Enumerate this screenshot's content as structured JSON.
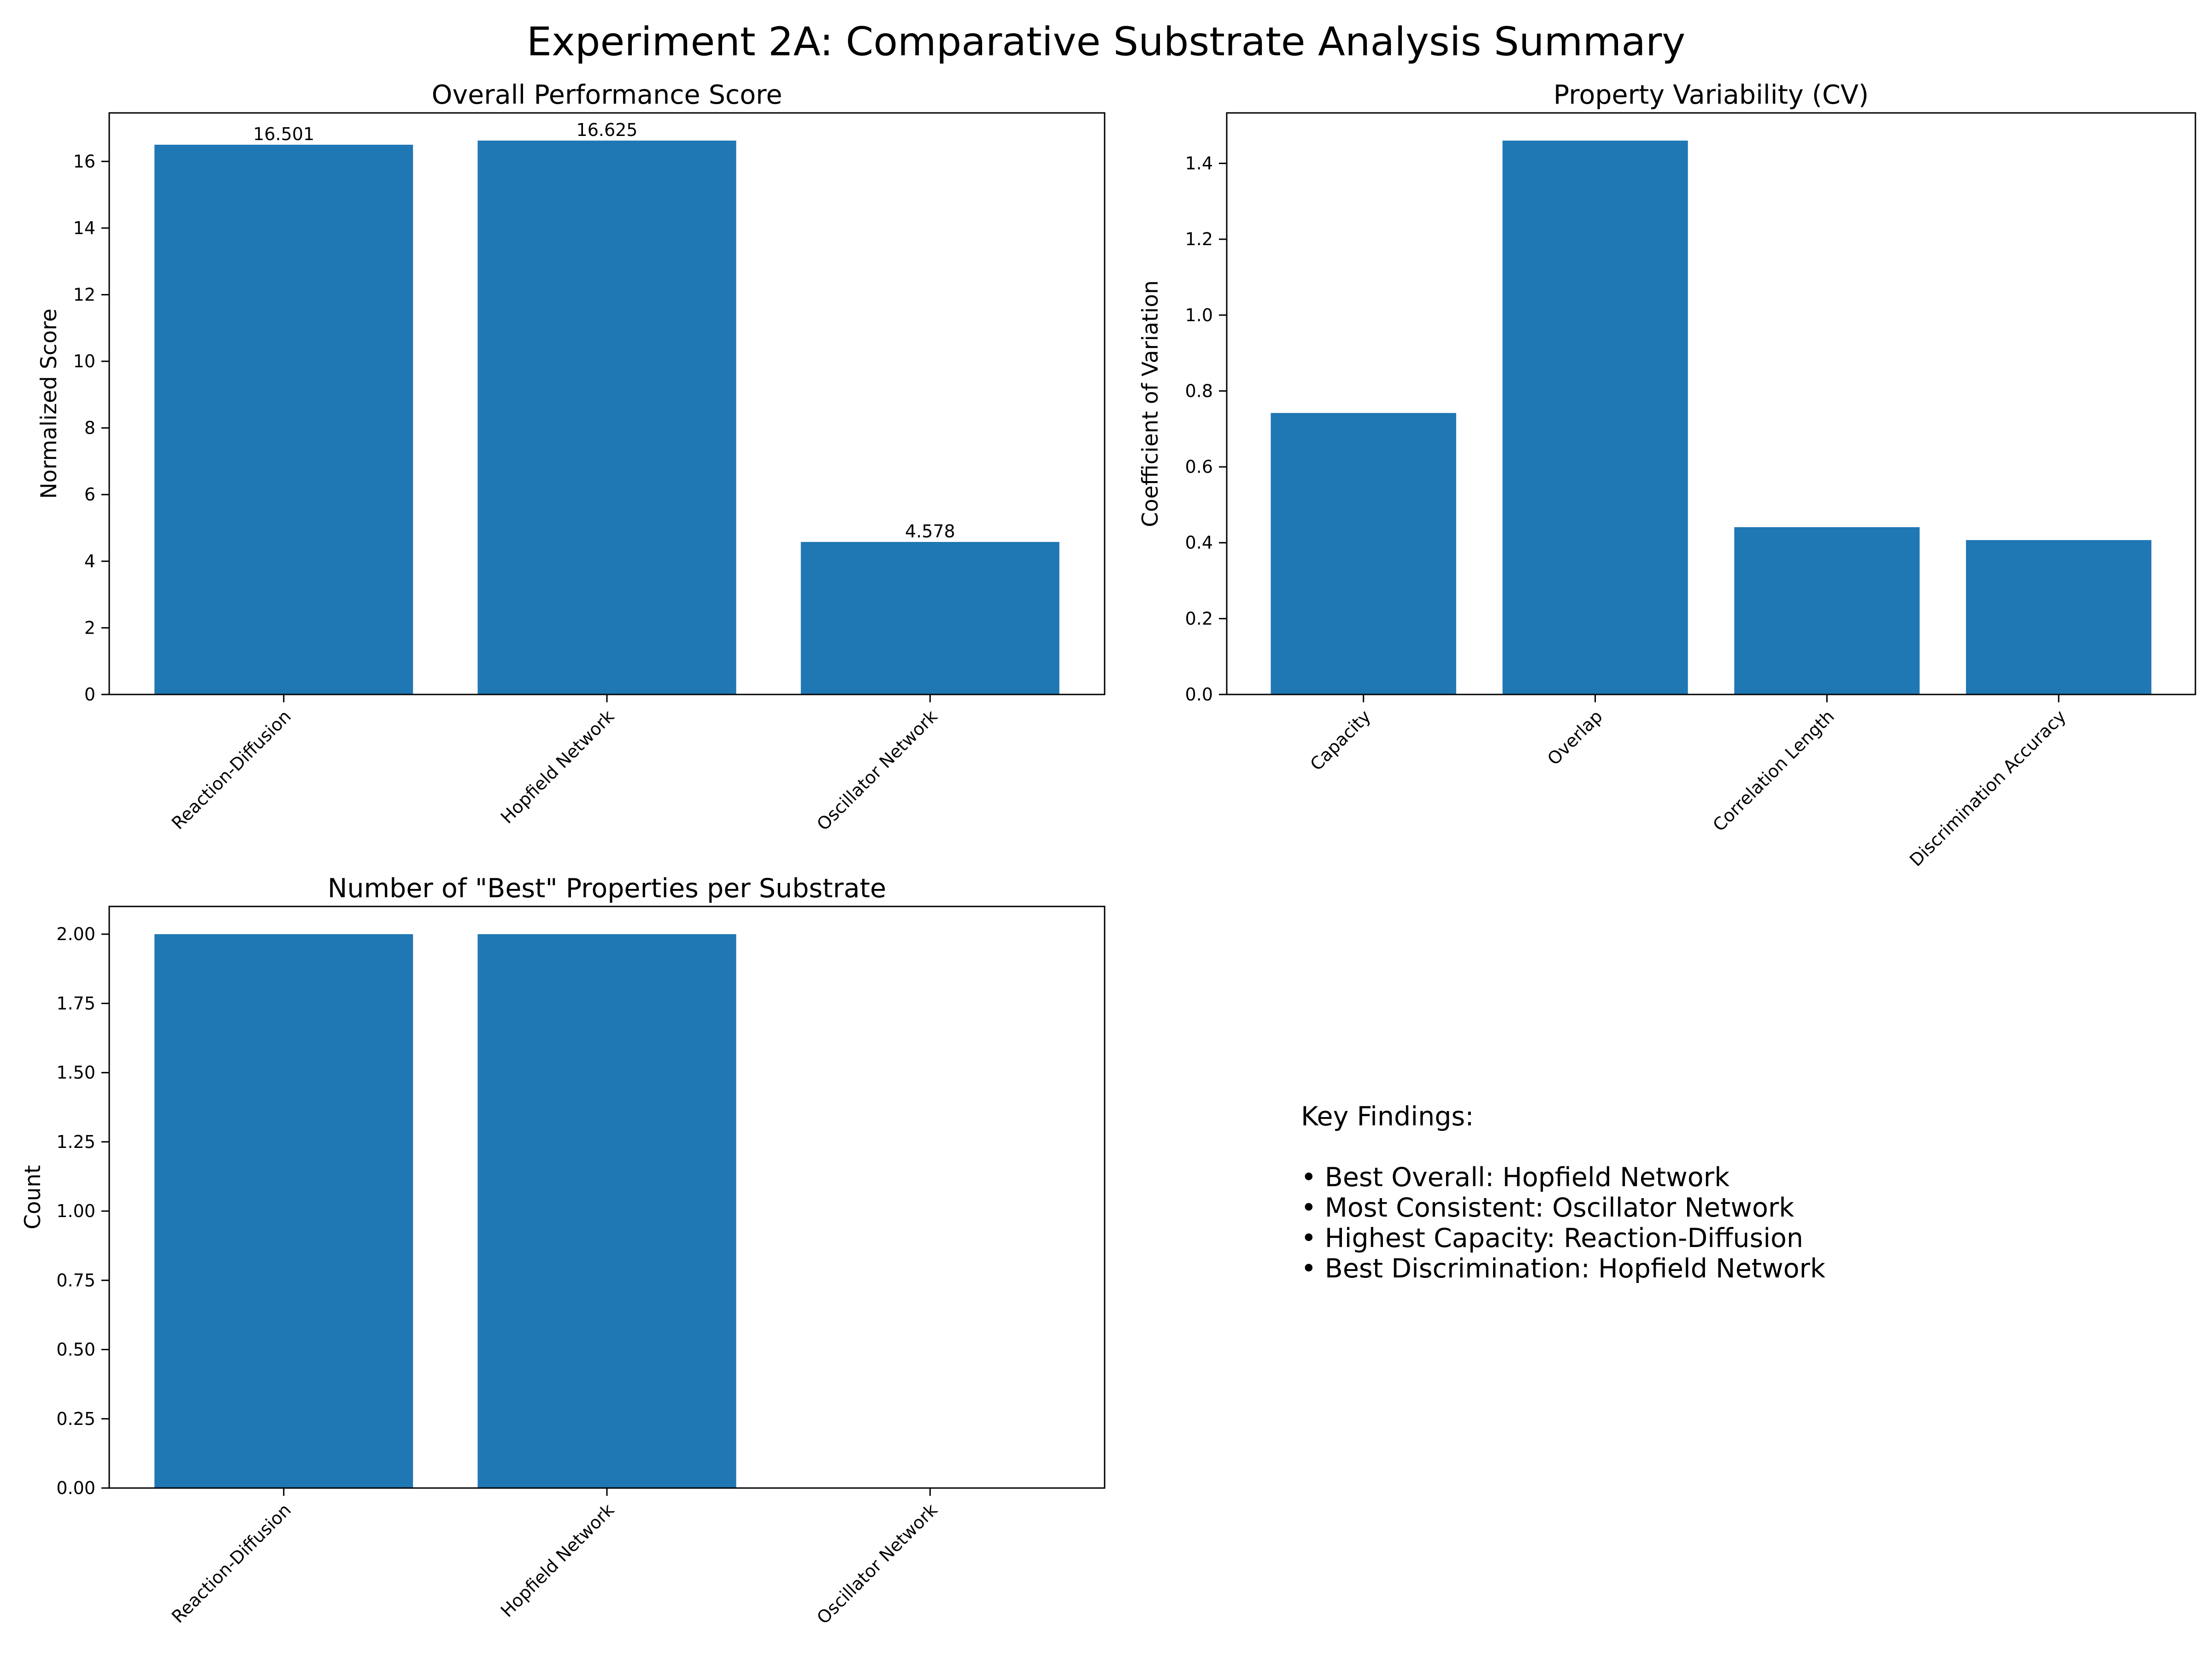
{
  "figure": {
    "title": "Experiment 2A: Comparative Substrate Analysis Summary",
    "bar_color": "#1f77b4"
  },
  "chart_data": [
    {
      "id": "performance",
      "type": "bar",
      "title": "Overall Performance Score",
      "xlabel": "",
      "ylabel": "Normalized Score",
      "categories": [
        "Reaction-Diffusion",
        "Hopfield Network",
        "Oscillator Network"
      ],
      "values": [
        16.501,
        16.625,
        4.578
      ],
      "data_labels": [
        "16.501",
        "16.625",
        "4.578"
      ],
      "ylim": [
        0,
        17.456
      ],
      "yticks": [
        0,
        2,
        4,
        6,
        8,
        10,
        12,
        14,
        16
      ],
      "ytick_labels": [
        "0",
        "2",
        "4",
        "6",
        "8",
        "10",
        "12",
        "14",
        "16"
      ],
      "grid": false,
      "legend": "none"
    },
    {
      "id": "variability",
      "type": "bar",
      "title": "Property Variability (CV)",
      "xlabel": "",
      "ylabel": "Coefficient of Variation",
      "categories": [
        "Capacity",
        "Overlap",
        "Correlation Length",
        "Discrimination Accuracy"
      ],
      "values": [
        0.742,
        1.46,
        0.441,
        0.407
      ],
      "data_labels": [],
      "ylim": [
        0,
        1.533
      ],
      "yticks": [
        0,
        0.2,
        0.4,
        0.6,
        0.8,
        1.0,
        1.2,
        1.4
      ],
      "ytick_labels": [
        "0.0",
        "0.2",
        "0.4",
        "0.6",
        "0.8",
        "1.0",
        "1.2",
        "1.4"
      ],
      "grid": false,
      "legend": "none"
    },
    {
      "id": "best",
      "type": "bar",
      "title": "Number of \"Best\" Properties per Substrate",
      "xlabel": "",
      "ylabel": "Count",
      "categories": [
        "Reaction-Diffusion",
        "Hopfield Network",
        "Oscillator Network"
      ],
      "values": [
        2,
        2,
        0
      ],
      "data_labels": [],
      "ylim": [
        0,
        2.1
      ],
      "yticks": [
        0,
        0.25,
        0.5,
        0.75,
        1.0,
        1.25,
        1.5,
        1.75,
        2.0
      ],
      "ytick_labels": [
        "0.00",
        "0.25",
        "0.50",
        "0.75",
        "1.00",
        "1.25",
        "1.50",
        "1.75",
        "2.00"
      ],
      "grid": false,
      "legend": "none"
    }
  ],
  "key_findings": {
    "heading": "Key Findings:",
    "items": [
      "• Best Overall: Hopfield Network",
      "• Most Consistent: Oscillator Network",
      "• Highest Capacity: Reaction-Diffusion",
      "• Best Discrimination: Hopfield Network"
    ]
  }
}
